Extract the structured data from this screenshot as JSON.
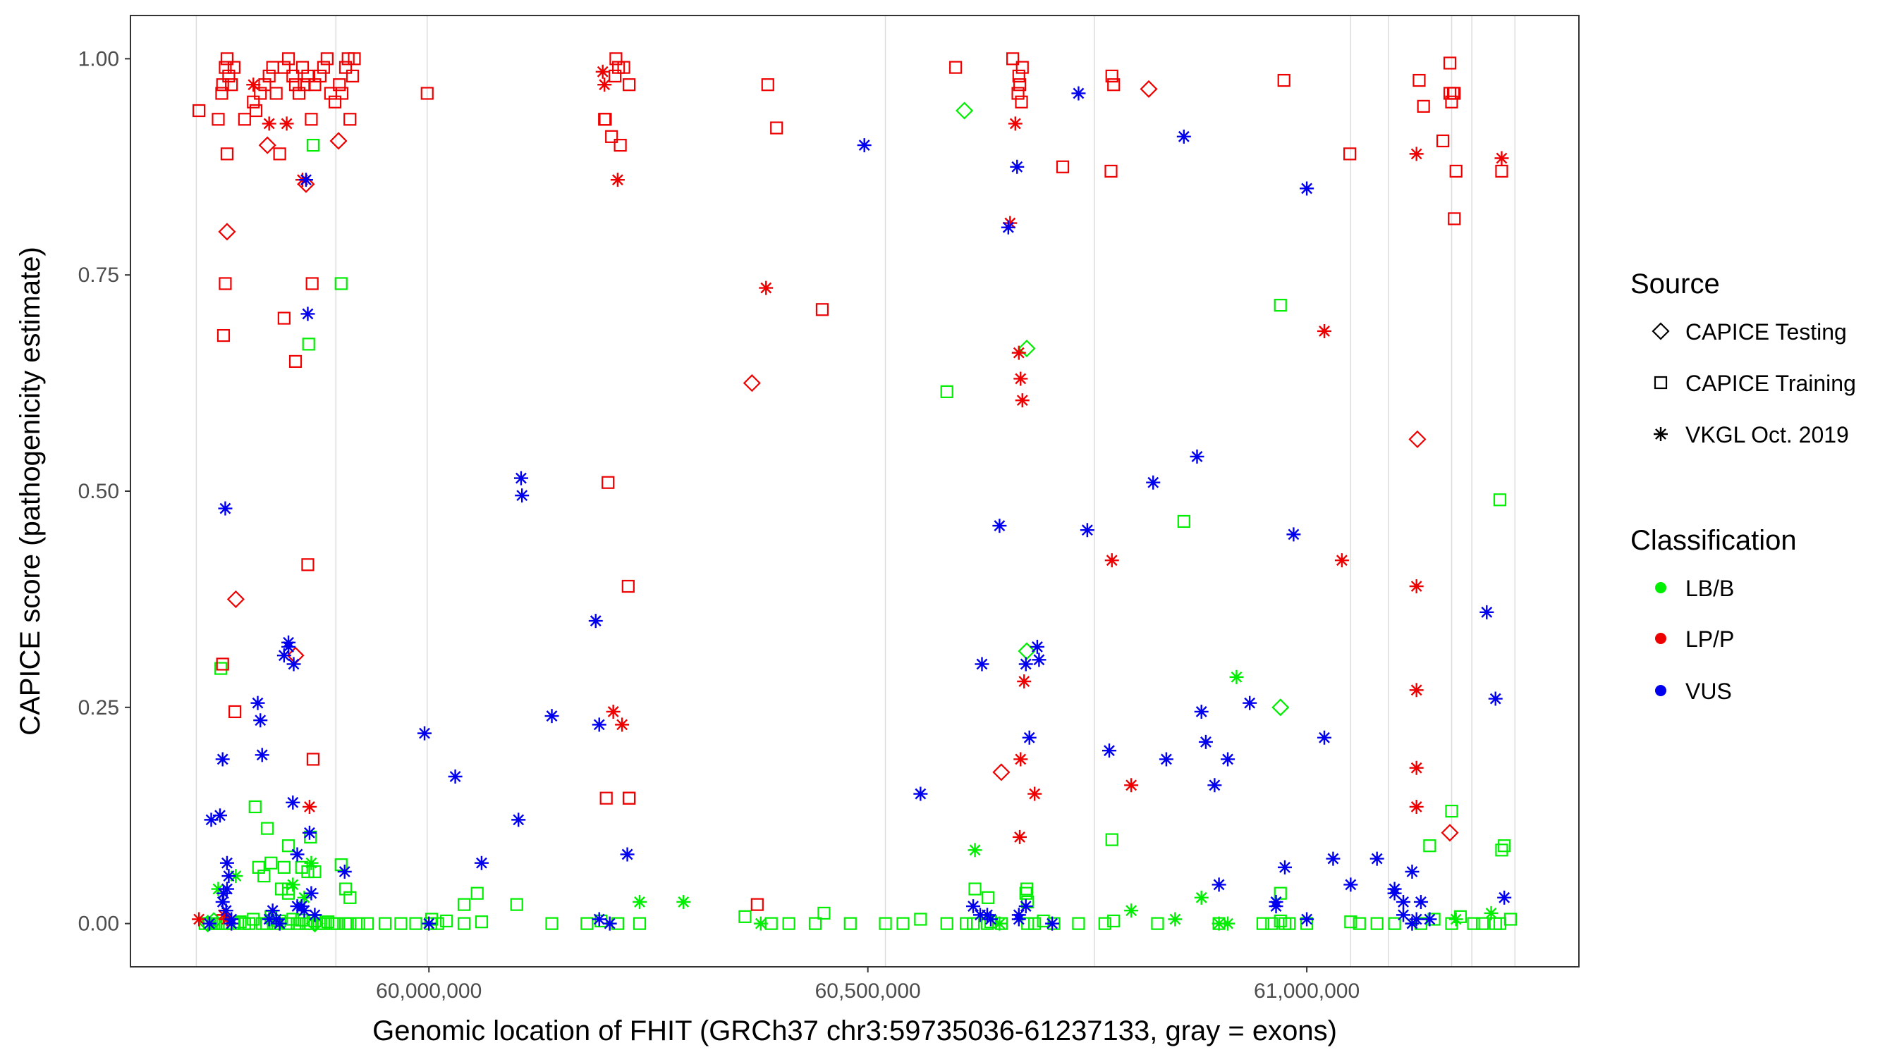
{
  "chart_data": {
    "type": "scatter",
    "title": "",
    "xlabel": "Genomic location of FHIT (GRCh37 chr3:59735036-61237133, gray = exons)",
    "ylabel": "CAPICE score (pathogenicity estimate)",
    "xlim": [
      59660000,
      61310000
    ],
    "ylim": [
      -0.05,
      1.05
    ],
    "x_ticks": [
      60000000,
      60500000,
      61000000
    ],
    "x_tick_labels": [
      "60,000,000",
      "60,500,000",
      "61,000,000"
    ],
    "y_ticks": [
      0,
      0.25,
      0.5,
      0.75,
      1.0
    ],
    "y_tick_labels": [
      "0.00",
      "0.25",
      "0.50",
      "0.75",
      "1.00"
    ],
    "exons": [
      59735036,
      59894000,
      59998000,
      60520000,
      60758000,
      61050000,
      61093000,
      61165000,
      61188000,
      61237133
    ],
    "legend": {
      "source_title": "Source",
      "source_entries": [
        {
          "label": "CAPICE Testing",
          "shape": "diamond"
        },
        {
          "label": "CAPICE Training",
          "shape": "square"
        },
        {
          "label": "VKGL Oct. 2019",
          "shape": "asterisk"
        }
      ],
      "class_title": "Classification",
      "class_entries": [
        {
          "label": "LB/B",
          "color": "#00ee00"
        },
        {
          "label": "LP/P",
          "color": "#ee0000"
        },
        {
          "label": "VUS",
          "color": "#0000ee"
        }
      ],
      "placement": "right"
    },
    "series": [
      {
        "name": "LP/P · CAPICE Training",
        "class": "LP/P",
        "source": "CAPICE Training",
        "x": [
          59738000,
          59760000,
          59764000,
          59765000,
          59768000,
          59770000,
          59772000,
          59775000,
          59778000,
          59790000,
          59800000,
          59803000,
          59808000,
          59813000,
          59818000,
          59822000,
          59826000,
          59830000,
          59835000,
          59840000,
          59845000,
          59848000,
          59852000,
          59856000,
          59858000,
          59862000,
          59866000,
          59870000,
          59876000,
          59880000,
          59884000,
          59888000,
          59893000,
          59898000,
          59901000,
          59905000,
          59908000,
          59910000,
          59913000,
          59915000,
          59770000,
          59768000,
          59766000,
          59835000,
          59765000,
          59779000,
          59868000,
          59848000,
          59862000,
          59867000,
          59998000,
          60200000,
          60208000,
          60213000,
          60218000,
          60222000,
          60228000,
          60204000,
          60212000,
          60216000,
          60201000,
          60227000,
          60386000,
          60396000,
          60448000,
          60202000,
          60228000,
          60228000,
          60374000,
          60600000,
          60665000,
          60672000,
          60676000,
          60671000,
          60675000,
          60673000,
          60722000,
          60778000,
          60780000,
          60777000,
          60974000,
          61049000,
          61128000,
          61133000,
          61155000,
          61163000,
          61163000,
          61168000,
          61170000,
          61168000,
          61165000,
          61167000,
          61222000
        ],
        "y": [
          0.94,
          0.93,
          0.96,
          0.97,
          0.99,
          1.0,
          0.98,
          0.97,
          0.99,
          0.93,
          0.95,
          0.94,
          0.96,
          0.97,
          0.98,
          0.99,
          0.96,
          0.89,
          0.99,
          1.0,
          0.98,
          0.97,
          0.96,
          0.99,
          0.97,
          0.98,
          0.93,
          0.97,
          0.98,
          0.99,
          1.0,
          0.96,
          0.95,
          0.97,
          0.96,
          0.99,
          1.0,
          0.93,
          0.98,
          1.0,
          0.89,
          0.74,
          0.68,
          0.7,
          0.3,
          0.245,
          0.19,
          0.65,
          0.415,
          0.74,
          0.96,
          0.93,
          0.91,
          1.0,
          0.9,
          0.99,
          0.97,
          0.51,
          0.98,
          0.99,
          0.93,
          0.39,
          0.97,
          0.92,
          0.71,
          0.145,
          0.145,
          0.145,
          0.022,
          0.99,
          1.0,
          0.98,
          0.99,
          0.96,
          0.95,
          0.97,
          0.875,
          0.98,
          0.97,
          0.87,
          0.975,
          0.89,
          0.975,
          0.945,
          0.905,
          0.995,
          0.96,
          0.96,
          0.87,
          0.815,
          0.95,
          0.96,
          0.87
        ]
      },
      {
        "name": "LP/P · CAPICE Testing",
        "class": "LP/P",
        "source": "CAPICE Testing",
        "x": [
          59816000,
          59770000,
          59780000,
          59860000,
          59848000,
          59897000,
          60820000,
          60368000,
          60652000,
          61126000,
          61163000
        ],
        "y": [
          0.9,
          0.8,
          0.375,
          0.855,
          0.31,
          0.905,
          0.965,
          0.625,
          0.175,
          0.56,
          0.105
        ]
      },
      {
        "name": "LP/P · VKGL Oct. 2019",
        "class": "LP/P",
        "source": "VKGL Oct. 2019",
        "x": [
          59738000,
          59766000,
          59770000,
          59800000,
          59818000,
          59838000,
          59856000,
          59864000,
          60198000,
          60200000,
          60215000,
          60210000,
          60220000,
          60384000,
          60662000,
          60668000,
          60672000,
          60674000,
          60676000,
          60678000,
          60674000,
          60673000,
          60690000,
          60778000,
          60800000,
          61040000,
          61125000,
          61125000,
          61125000,
          61125000,
          61125000,
          61222000,
          61020000
        ],
        "y": [
          0.005,
          0.01,
          0.005,
          0.97,
          0.925,
          0.925,
          0.86,
          0.135,
          0.985,
          0.97,
          0.86,
          0.245,
          0.23,
          0.735,
          0.81,
          0.925,
          0.66,
          0.63,
          0.605,
          0.28,
          0.19,
          0.1,
          0.15,
          0.42,
          0.16,
          0.42,
          0.89,
          0.39,
          0.27,
          0.18,
          0.135,
          0.885,
          0.685
        ]
      },
      {
        "name": "LB/B · CAPICE Training",
        "class": "LB/B",
        "source": "CAPICE Training",
        "x": [
          59745000,
          59750000,
          59755000,
          59760000,
          59765000,
          59770000,
          59778000,
          59785000,
          59790000,
          59795000,
          59800000,
          59810000,
          59815000,
          59820000,
          59825000,
          59830000,
          59840000,
          59845000,
          59850000,
          59855000,
          59860000,
          59865000,
          59870000,
          59875000,
          59880000,
          59885000,
          59890000,
          59895000,
          59905000,
          59910000,
          59920000,
          59930000,
          59950000,
          59968000,
          59985000,
          60002000,
          60010000,
          60020000,
          60040000,
          60060000,
          60100000,
          60140000,
          60180000,
          60196000,
          60215000,
          60240000,
          60360000,
          60390000,
          60410000,
          60440000,
          60450000,
          60480000,
          60520000,
          60540000,
          60560000,
          60590000,
          60612000,
          60620000,
          60636000,
          60640000,
          60652000,
          60682000,
          60690000,
          60700000,
          60712000,
          60740000,
          60770000,
          60780000,
          60830000,
          60900000,
          60950000,
          60960000,
          60970000,
          60975000,
          60980000,
          61000000,
          61050000,
          61060000,
          61080000,
          61100000,
          61130000,
          61145000,
          61165000,
          61175000,
          61190000,
          61200000,
          61215000,
          61220000,
          61232000,
          59763000,
          59802000,
          59816000,
          59820000,
          59835000,
          59840000,
          59855000,
          59862000,
          59865000,
          59870000,
          59900000,
          59905000,
          59910000,
          59868000,
          59863000,
          60040000,
          60055000,
          60590000,
          60622000,
          60637000,
          60680000,
          60681000,
          60682000,
          60778000,
          60860000,
          60970000,
          60970000,
          61140000,
          61165000,
          61220000,
          61222000,
          61225000,
          59812000,
          59840000,
          59832000,
          59806000,
          59840000,
          59900000,
          60003000
        ],
        "y": [
          0.0,
          0.0,
          0.0,
          0.0,
          0.0,
          0.0,
          0.0,
          0.002,
          0.0,
          0.0,
          0.005,
          0.0,
          0.0,
          0.008,
          0.0,
          0.003,
          0.0,
          0.005,
          0.0,
          0.004,
          0.0,
          0.0,
          0.003,
          0.0,
          0.0,
          0.002,
          0.0,
          0.0,
          0.0,
          0.0,
          0.0,
          0.0,
          0.0,
          0.0,
          0.0,
          0.0,
          0.0,
          0.003,
          0.0,
          0.002,
          0.022,
          0.0,
          0.0,
          0.003,
          0.0,
          0.0,
          0.008,
          0.0,
          0.0,
          0.0,
          0.012,
          0.0,
          0.0,
          0.0,
          0.005,
          0.0,
          0.0,
          0.0,
          0.0,
          0.002,
          0.0,
          0.0,
          0.0,
          0.003,
          0.0,
          0.0,
          0.0,
          0.003,
          0.0,
          0.0,
          0.0,
          0.0,
          0.003,
          0.0,
          0.0,
          0.0,
          0.002,
          0.0,
          0.0,
          0.0,
          0.0,
          0.005,
          0.0,
          0.008,
          0.0,
          0.0,
          0.0,
          0.0,
          0.005,
          0.295,
          0.135,
          0.11,
          0.07,
          0.065,
          0.09,
          0.065,
          0.06,
          0.1,
          0.06,
          0.068,
          0.04,
          0.03,
          0.9,
          0.67,
          0.022,
          0.035,
          0.615,
          0.04,
          0.03,
          0.035,
          0.04,
          0.025,
          0.097,
          0.465,
          0.715,
          0.035,
          0.09,
          0.13,
          0.49,
          0.085,
          0.09,
          0.055,
          0.035,
          0.04,
          0.065,
          0.04,
          0.74,
          0.005
        ]
      },
      {
        "name": "LB/B · CAPICE Testing",
        "class": "LB/B",
        "source": "CAPICE Testing",
        "x": [
          59748000,
          59755000,
          59870000,
          60610000,
          60681000,
          60681000,
          60970000
        ],
        "y": [
          0.0,
          0.003,
          0.0,
          0.94,
          0.665,
          0.315,
          0.25
        ]
      },
      {
        "name": "LB/B · VKGL Oct. 2019",
        "class": "LB/B",
        "source": "VKGL Oct. 2019",
        "x": [
          59760000,
          59780000,
          59845000,
          59858000,
          59866000,
          60240000,
          60290000,
          60378000,
          60622000,
          60650000,
          60800000,
          60850000,
          60880000,
          60900000,
          60910000,
          60920000,
          61120000,
          61170000,
          61210000,
          59820000
        ],
        "y": [
          0.04,
          0.055,
          0.045,
          0.03,
          0.07,
          0.025,
          0.025,
          0.0,
          0.085,
          0.0,
          0.015,
          0.005,
          0.03,
          0.0,
          0.0,
          0.285,
          0.0,
          0.005,
          0.012,
          0.005
        ]
      },
      {
        "name": "VUS · VKGL Oct. 2019",
        "class": "VUS",
        "source": "VKGL Oct. 2019",
        "x": [
          59752000,
          59762000,
          59765000,
          59768000,
          59770000,
          59772000,
          59766000,
          59769000,
          59775000,
          59805000,
          59808000,
          59810000,
          59818000,
          59822000,
          59826000,
          59830000,
          59835000,
          59840000,
          59845000,
          59850000,
          59855000,
          59860000,
          59862000,
          59864000,
          59866000,
          59870000,
          59904000,
          59995000,
          60000000,
          60030000,
          60060000,
          60102000,
          60105000,
          60106000,
          60140000,
          60190000,
          60194000,
          60226000,
          60496000,
          60560000,
          60630000,
          60636000,
          60640000,
          60650000,
          60660000,
          60670000,
          60672000,
          60680000,
          60684000,
          60693000,
          60695000,
          60740000,
          60750000,
          60775000,
          60825000,
          60840000,
          60860000,
          60875000,
          60880000,
          60885000,
          60895000,
          60900000,
          60910000,
          60935000,
          60965000,
          60975000,
          60985000,
          61000000,
          61020000,
          61030000,
          61050000,
          61100000,
          61110000,
          61120000,
          61130000,
          61140000,
          61205000,
          61215000,
          61225000,
          59840000,
          59846000,
          59850000,
          59858000,
          59765000,
          59770000,
          59775000,
          59750000,
          60194000,
          60206000,
          60620000,
          60628000,
          60672000,
          60680000,
          60710000,
          61000000,
          61080000,
          61100000,
          61110000,
          61120000,
          61125000,
          60965000
        ],
        "y": [
          0.12,
          0.125,
          0.19,
          0.48,
          0.07,
          0.055,
          0.035,
          0.015,
          0.005,
          0.255,
          0.235,
          0.195,
          0.005,
          0.015,
          0.005,
          0.0,
          0.31,
          0.325,
          0.14,
          0.08,
          0.02,
          0.86,
          0.705,
          0.105,
          0.035,
          0.01,
          0.06,
          0.22,
          0.0,
          0.17,
          0.07,
          0.12,
          0.515,
          0.495,
          0.24,
          0.35,
          0.23,
          0.08,
          0.9,
          0.15,
          0.3,
          0.01,
          0.005,
          0.46,
          0.805,
          0.875,
          0.01,
          0.3,
          0.215,
          0.32,
          0.305,
          0.96,
          0.455,
          0.2,
          0.51,
          0.19,
          0.91,
          0.54,
          0.245,
          0.21,
          0.16,
          0.045,
          0.19,
          0.255,
          0.025,
          0.065,
          0.45,
          0.85,
          0.215,
          0.075,
          0.045,
          0.035,
          0.01,
          0.06,
          0.025,
          0.005,
          0.36,
          0.26,
          0.03,
          0.32,
          0.3,
          0.02,
          0.015,
          0.025,
          0.04,
          0.0,
          0.0,
          0.005,
          0.0,
          0.02,
          0.01,
          0.005,
          0.02,
          0.0,
          0.005,
          0.075,
          0.04,
          0.025,
          0.0,
          0.005,
          0.02
        ]
      }
    ]
  }
}
